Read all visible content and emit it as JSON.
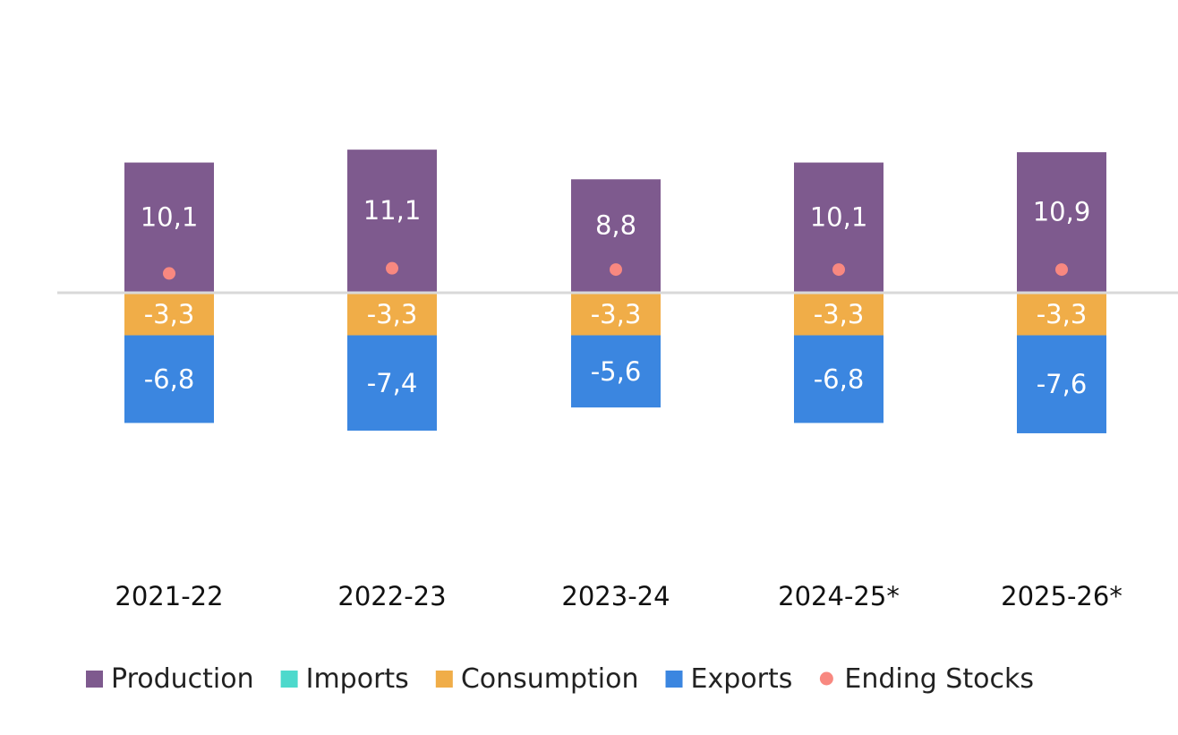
{
  "chart_data": {
    "type": "bar",
    "stacked": true,
    "categories": [
      "2021-22",
      "2022-23",
      "2023-24",
      "2024-25*",
      "2025-26*"
    ],
    "series": [
      {
        "name": "Production",
        "color": "#7e5a8e",
        "values": [
          10.1,
          11.1,
          8.8,
          10.1,
          10.9
        ],
        "labels": [
          "10,1",
          "11,1",
          "8,8",
          "10,1",
          "10,9"
        ]
      },
      {
        "name": "Imports",
        "color": "#4dd9cc",
        "values": [
          0,
          0,
          0,
          0,
          0
        ]
      },
      {
        "name": "Consumption",
        "color": "#f0ad48",
        "values": [
          -3.3,
          -3.3,
          -3.3,
          -3.3,
          -3.3
        ],
        "labels": [
          "-3,3",
          "-3,3",
          "-3,3",
          "-3,3",
          "-3,3"
        ]
      },
      {
        "name": "Exports",
        "color": "#3b86e0",
        "values": [
          -6.8,
          -7.4,
          -5.6,
          -6.8,
          -7.6
        ],
        "labels": [
          "-6,8",
          "-7,4",
          "-5,6",
          "-6,8",
          "-7,6"
        ]
      },
      {
        "name": "Ending Stocks",
        "type": "scatter",
        "color": "#f88880",
        "values": [
          1.5,
          1.9,
          1.8,
          1.8,
          1.8
        ]
      }
    ],
    "ylim": [
      -20,
      20
    ],
    "grid": false,
    "zero_line": true,
    "legend": "bottom"
  }
}
